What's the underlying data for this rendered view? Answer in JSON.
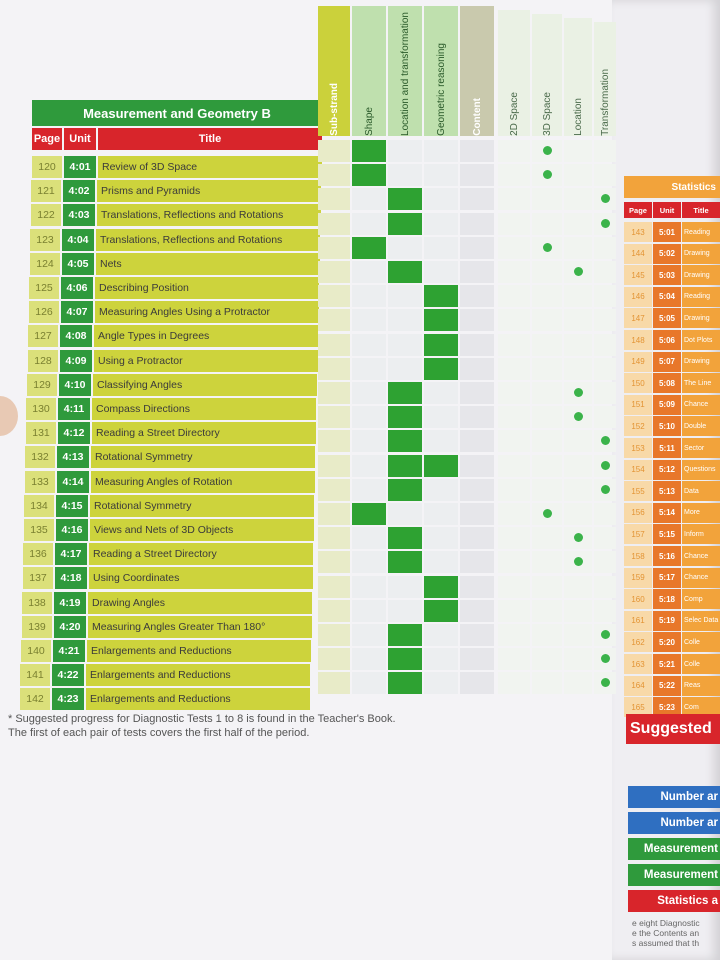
{
  "main": {
    "title": "Measurement and Geometry B",
    "headers": {
      "page": "Page",
      "unit": "Unit",
      "title": "Title"
    },
    "columns": [
      {
        "label": "Sub-strand",
        "kind": "sub"
      },
      {
        "label": "Shape",
        "kind": "lt"
      },
      {
        "label": "Location and transformation",
        "kind": "lt"
      },
      {
        "label": "Geometric reasoning",
        "kind": "lt"
      },
      {
        "label": "Content",
        "kind": "content"
      },
      {
        "label": "2D Space",
        "kind": "pale"
      },
      {
        "label": "3D Space",
        "kind": "pale"
      },
      {
        "label": "Location",
        "kind": "pale"
      },
      {
        "label": "Transformation",
        "kind": "pale"
      }
    ],
    "rows": [
      {
        "page": "120",
        "unit": "4:01",
        "title": "Review of 3D Space",
        "marks": [
          1,
          0,
          0
        ],
        "dot": 1
      },
      {
        "page": "121",
        "unit": "4:02",
        "title": "Prisms and Pyramids",
        "marks": [
          1,
          0,
          0
        ],
        "dot": 1
      },
      {
        "page": "122",
        "unit": "4:03",
        "title": "Translations, Reflections and Rotations",
        "marks": [
          0,
          1,
          0
        ],
        "dot": 3
      },
      {
        "page": "123",
        "unit": "4:04",
        "title": "Translations, Reflections and Rotations",
        "marks": [
          0,
          1,
          0
        ],
        "dot": 3
      },
      {
        "page": "124",
        "unit": "4:05",
        "title": "Nets",
        "marks": [
          1,
          0,
          0
        ],
        "dot": 1
      },
      {
        "page": "125",
        "unit": "4:06",
        "title": "Describing Position",
        "marks": [
          0,
          1,
          0
        ],
        "dot": 2
      },
      {
        "page": "126",
        "unit": "4:07",
        "title": "Measuring Angles Using a Protractor",
        "marks": [
          0,
          0,
          1
        ],
        "dot": -1
      },
      {
        "page": "127",
        "unit": "4:08",
        "title": "Angle Types in Degrees",
        "marks": [
          0,
          0,
          1
        ],
        "dot": -1
      },
      {
        "page": "128",
        "unit": "4:09",
        "title": "Using a Protractor",
        "marks": [
          0,
          0,
          1
        ],
        "dot": -1
      },
      {
        "page": "129",
        "unit": "4:10",
        "title": "Classifying Angles",
        "marks": [
          0,
          0,
          1
        ],
        "dot": -1
      },
      {
        "page": "130",
        "unit": "4:11",
        "title": "Compass Directions",
        "marks": [
          0,
          1,
          0
        ],
        "dot": 2
      },
      {
        "page": "131",
        "unit": "4:12",
        "title": "Reading a Street Directory",
        "marks": [
          0,
          1,
          0
        ],
        "dot": 2
      },
      {
        "page": "132",
        "unit": "4:13",
        "title": "Rotational Symmetry",
        "marks": [
          0,
          1,
          0
        ],
        "dot": 3
      },
      {
        "page": "133",
        "unit": "4:14",
        "title": "Measuring Angles of Rotation",
        "marks": [
          0,
          1,
          1
        ],
        "dot": 3
      },
      {
        "page": "134",
        "unit": "4:15",
        "title": "Rotational Symmetry",
        "marks": [
          0,
          1,
          0
        ],
        "dot": 3
      },
      {
        "page": "135",
        "unit": "4:16",
        "title": "Views and Nets of 3D Objects",
        "marks": [
          1,
          0,
          0
        ],
        "dot": 1
      },
      {
        "page": "136",
        "unit": "4:17",
        "title": "Reading a Street Directory",
        "marks": [
          0,
          1,
          0
        ],
        "dot": 2
      },
      {
        "page": "137",
        "unit": "4:18",
        "title": "Using Coordinates",
        "marks": [
          0,
          1,
          0
        ],
        "dot": 2
      },
      {
        "page": "138",
        "unit": "4:19",
        "title": "Drawing Angles",
        "marks": [
          0,
          0,
          1
        ],
        "dot": -1
      },
      {
        "page": "139",
        "unit": "4:20",
        "title": "Measuring Angles Greater Than 180°",
        "marks": [
          0,
          0,
          1
        ],
        "dot": -1
      },
      {
        "page": "140",
        "unit": "4:21",
        "title": "Enlargements and Reductions",
        "marks": [
          0,
          1,
          0
        ],
        "dot": 3
      },
      {
        "page": "141",
        "unit": "4:22",
        "title": "Enlargements and Reductions",
        "marks": [
          0,
          1,
          0
        ],
        "dot": 3
      },
      {
        "page": "142",
        "unit": "4:23",
        "title": "Enlargements and Reductions",
        "marks": [
          0,
          1,
          0
        ],
        "dot": 3
      }
    ],
    "footnote_line1": "* Suggested progress for Diagnostic Tests 1 to 8 is found in the Teacher's Book.",
    "footnote_line2": "The first of each pair of tests covers the first half of the period."
  },
  "statistics": {
    "title": "Statistics",
    "headers": {
      "page": "Page",
      "unit": "Unit",
      "title": "Title"
    },
    "rows": [
      {
        "page": "143",
        "unit": "5:01",
        "title": "Reading"
      },
      {
        "page": "144",
        "unit": "5:02",
        "title": "Drawing"
      },
      {
        "page": "145",
        "unit": "5:03",
        "title": "Drawing"
      },
      {
        "page": "146",
        "unit": "5:04",
        "title": "Reading"
      },
      {
        "page": "147",
        "unit": "5:05",
        "title": "Drawing"
      },
      {
        "page": "148",
        "unit": "5:06",
        "title": "Dot Plots"
      },
      {
        "page": "149",
        "unit": "5:07",
        "title": "Drawing"
      },
      {
        "page": "150",
        "unit": "5:08",
        "title": "The Line"
      },
      {
        "page": "151",
        "unit": "5:09",
        "title": "Chance"
      },
      {
        "page": "152",
        "unit": "5:10",
        "title": "Double"
      },
      {
        "page": "153",
        "unit": "5:11",
        "title": "Sector"
      },
      {
        "page": "154",
        "unit": "5:12",
        "title": "Questions"
      },
      {
        "page": "155",
        "unit": "5:13",
        "title": "Data"
      },
      {
        "page": "156",
        "unit": "5:14",
        "title": "More"
      },
      {
        "page": "157",
        "unit": "5:15",
        "title": "Inform"
      },
      {
        "page": "158",
        "unit": "5:16",
        "title": "Chance"
      },
      {
        "page": "159",
        "unit": "5:17",
        "title": "Chance"
      },
      {
        "page": "160",
        "unit": "5:18",
        "title": "Comp"
      },
      {
        "page": "161",
        "unit": "5:19",
        "title": "Selec Data"
      },
      {
        "page": "162",
        "unit": "5:20",
        "title": "Colle"
      },
      {
        "page": "163",
        "unit": "5:21",
        "title": "Colle"
      },
      {
        "page": "164",
        "unit": "5:22",
        "title": "Reas"
      },
      {
        "page": "165",
        "unit": "5:23",
        "title": "Com"
      }
    ]
  },
  "suggested": {
    "title": "Suggested",
    "legend": [
      {
        "label": "Number ar",
        "color": "#2f6fc1"
      },
      {
        "label": "Number ar",
        "color": "#2f6fc1"
      },
      {
        "label": "Measurement",
        "color": "#2f9a3c"
      },
      {
        "label": "Measurement",
        "color": "#2f9a3c"
      },
      {
        "label": "Statistics a",
        "color": "#d8252b"
      }
    ],
    "text_line1": "e eight Diagnostic",
    "text_line2": "e the Contents an",
    "text_line3": "s assumed that th"
  }
}
